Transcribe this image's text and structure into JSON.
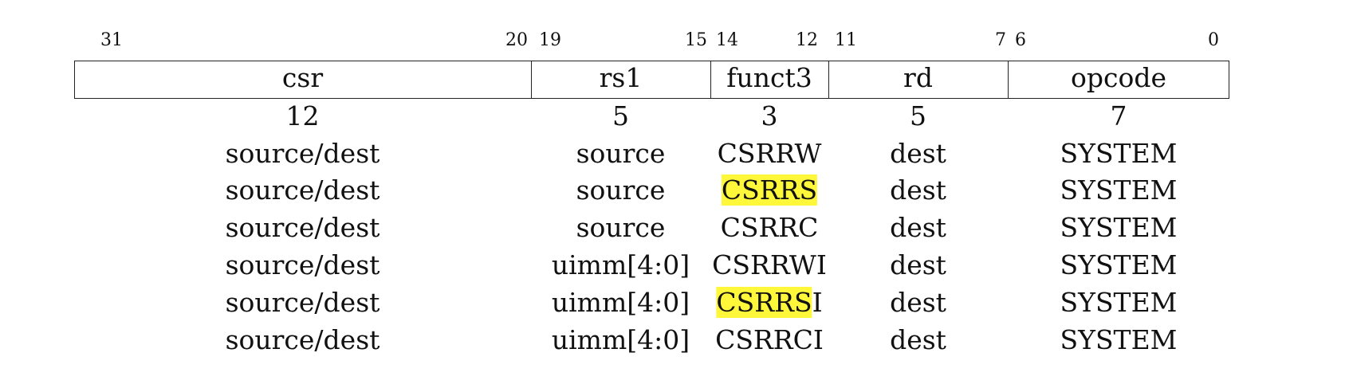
{
  "fields": [
    {
      "name": "csr",
      "hi_bit": "31",
      "lo_bit": "20",
      "width": "12"
    },
    {
      "name": "rs1",
      "hi_bit": "19",
      "lo_bit": "15",
      "width": "5"
    },
    {
      "name": "funct3",
      "hi_bit": "14",
      "lo_bit": "12",
      "width": "3"
    },
    {
      "name": "rd",
      "hi_bit": "11",
      "lo_bit": "7",
      "width": "5"
    },
    {
      "name": "opcode",
      "hi_bit": "6",
      "lo_bit": "0",
      "width": "7"
    }
  ],
  "rows": [
    {
      "csr": "source/dest",
      "rs1": "source",
      "funct3": {
        "mark": "",
        "rest": "CSRRW"
      },
      "rd": "dest",
      "opcode": "SYSTEM"
    },
    {
      "csr": "source/dest",
      "rs1": "source",
      "funct3": {
        "mark": "CSRRS",
        "rest": ""
      },
      "rd": "dest",
      "opcode": "SYSTEM"
    },
    {
      "csr": "source/dest",
      "rs1": "source",
      "funct3": {
        "mark": "",
        "rest": "CSRRC"
      },
      "rd": "dest",
      "opcode": "SYSTEM"
    },
    {
      "csr": "source/dest",
      "rs1": "uimm[4:0]",
      "funct3": {
        "mark": "",
        "rest": "CSRRWI"
      },
      "rd": "dest",
      "opcode": "SYSTEM"
    },
    {
      "csr": "source/dest",
      "rs1": "uimm[4:0]",
      "funct3": {
        "mark": "CSRRS",
        "rest": "I"
      },
      "rd": "dest",
      "opcode": "SYSTEM"
    },
    {
      "csr": "source/dest",
      "rs1": "uimm[4:0]",
      "funct3": {
        "mark": "",
        "rest": "CSRRCI"
      },
      "rd": "dest",
      "opcode": "SYSTEM"
    }
  ],
  "highlight_color": "#fff83a"
}
